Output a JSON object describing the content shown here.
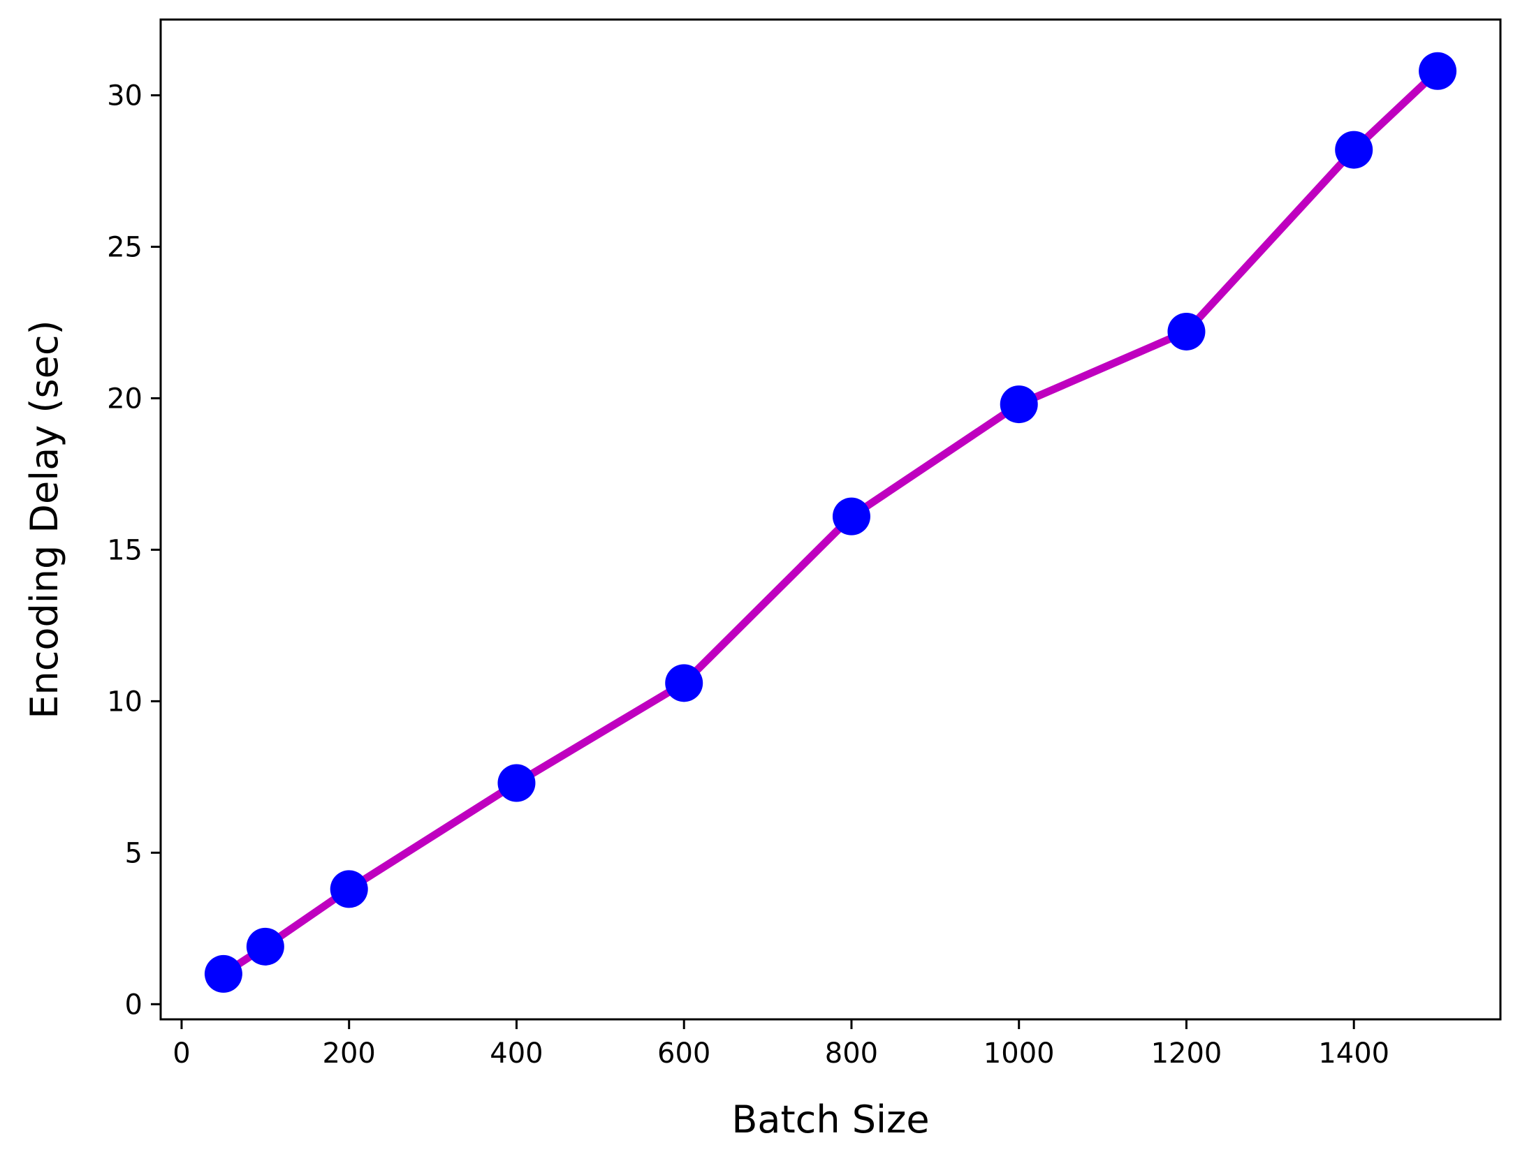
{
  "chart_data": {
    "type": "line",
    "title": "",
    "xlabel": "Batch Size",
    "ylabel": "Encoding Delay (sec)",
    "xlim": [
      -25,
      1575
    ],
    "ylim": [
      -0.5,
      32.5
    ],
    "xticks": [
      0,
      200,
      400,
      600,
      800,
      1000,
      1200,
      1400
    ],
    "yticks": [
      0,
      5,
      10,
      15,
      20,
      25,
      30
    ],
    "grid": false,
    "legend": "none",
    "series": [
      {
        "x": [
          50,
          100,
          200,
          400,
          600,
          800,
          1000,
          1200,
          1400,
          1500
        ],
        "y": [
          1.0,
          1.9,
          3.8,
          7.3,
          10.6,
          16.1,
          19.8,
          22.2,
          28.2,
          30.8
        ],
        "line_color": "#bf00bf",
        "marker_color": "#0000ff"
      }
    ]
  }
}
